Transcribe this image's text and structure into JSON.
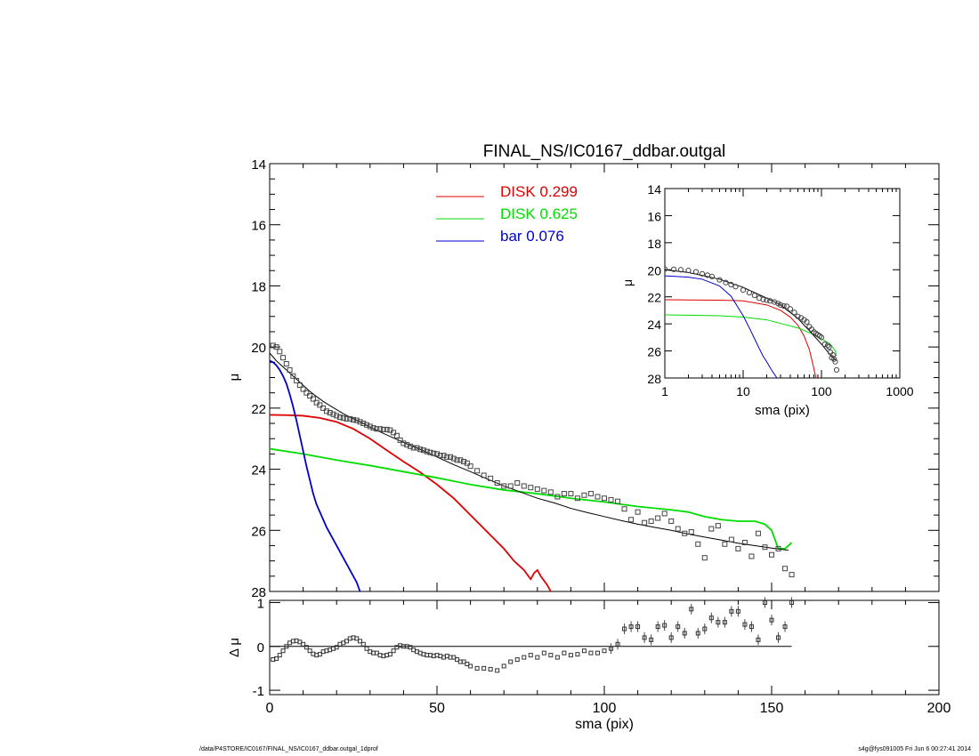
{
  "chart_data": [
    {
      "type": "line",
      "title": "FINAL_NS/IC0167_ddbar.outgal",
      "xlabel": "",
      "ylabel": "μ",
      "xlim": [
        0,
        200
      ],
      "ylim": [
        28,
        14
      ],
      "y_inverted": true,
      "x_ticks": [],
      "y_ticks": [
        "14",
        "16",
        "18",
        "20",
        "22",
        "24",
        "26",
        "28"
      ],
      "legend": [
        {
          "label": "DISK  0.299",
          "color": "#e00000"
        },
        {
          "label": "DISK  0.625",
          "color": "#00dd00"
        },
        {
          "label": "bar  0.076",
          "color": "#0000cc"
        }
      ],
      "legend_placement": "top-center",
      "series": [
        {
          "name": "DISK  0.299",
          "color": "#e00000",
          "x": [
            0,
            5,
            10,
            15,
            20,
            25,
            30,
            35,
            40,
            45,
            50,
            55,
            60,
            65,
            70,
            73,
            76,
            78,
            79,
            80,
            81,
            83,
            84,
            85
          ],
          "y": [
            22.22,
            22.23,
            22.25,
            22.32,
            22.45,
            22.68,
            23.0,
            23.38,
            23.75,
            24.1,
            24.5,
            24.95,
            25.5,
            26.05,
            26.6,
            27.0,
            27.3,
            27.6,
            27.4,
            27.3,
            27.5,
            27.8,
            28.0,
            28.1
          ]
        },
        {
          "name": "DISK  0.625",
          "color": "#00dd00",
          "x": [
            0,
            10,
            20,
            30,
            40,
            50,
            60,
            70,
            80,
            90,
            100,
            110,
            120,
            125,
            130,
            135,
            140,
            145,
            148,
            150,
            152,
            154,
            156
          ],
          "y": [
            23.33,
            23.5,
            23.7,
            23.88,
            24.08,
            24.28,
            24.5,
            24.68,
            24.8,
            24.95,
            25.07,
            25.22,
            25.33,
            25.4,
            25.55,
            25.65,
            25.7,
            25.7,
            25.8,
            26.0,
            26.6,
            26.6,
            26.4
          ]
        },
        {
          "name": "bar  0.076",
          "color": "#0000cc",
          "x": [
            0,
            1,
            2,
            3,
            4,
            5,
            6,
            7,
            8,
            9,
            10,
            11,
            12,
            13,
            14,
            15,
            17,
            20,
            23,
            26,
            27
          ],
          "y": [
            20.45,
            20.5,
            20.6,
            20.75,
            20.95,
            21.2,
            21.55,
            21.95,
            22.4,
            22.9,
            23.4,
            23.9,
            24.35,
            24.8,
            25.15,
            25.4,
            25.9,
            26.5,
            27.1,
            27.7,
            28.0
          ]
        },
        {
          "name": "",
          "color": "#000000",
          "x": [
            0,
            2,
            4,
            6,
            8,
            10,
            12,
            14,
            16,
            18,
            20,
            22,
            25,
            28,
            30,
            35,
            40,
            45,
            50,
            55,
            60,
            65,
            70,
            75,
            80,
            85,
            90,
            95,
            100,
            105,
            110,
            115,
            120,
            125,
            130,
            135,
            140,
            145,
            150,
            155
          ],
          "y": [
            20.2,
            20.45,
            20.65,
            20.85,
            21.05,
            21.25,
            21.45,
            21.62,
            21.78,
            21.92,
            22.05,
            22.18,
            22.35,
            22.5,
            22.62,
            22.88,
            23.12,
            23.35,
            23.6,
            23.85,
            24.08,
            24.32,
            24.55,
            24.75,
            24.95,
            25.1,
            25.28,
            25.42,
            25.55,
            25.68,
            25.8,
            25.9,
            26.0,
            26.12,
            26.22,
            26.32,
            26.42,
            26.5,
            26.58,
            26.65
          ]
        },
        {
          "name": "",
          "color": "#666666",
          "marker": "square",
          "x": [
            1,
            2,
            3,
            4,
            5,
            6,
            7,
            8,
            9,
            10,
            11,
            12,
            13,
            14,
            15,
            16,
            17,
            18,
            19,
            20,
            21,
            22,
            23,
            24,
            25,
            26,
            27,
            28,
            29,
            30,
            31,
            32,
            33,
            34,
            35,
            36,
            37,
            38,
            39,
            40,
            41,
            42,
            43,
            44,
            45,
            46,
            47,
            48,
            49,
            50,
            51,
            52,
            53,
            54,
            55,
            56,
            57,
            58,
            59,
            60,
            62,
            64,
            66,
            68,
            70,
            72,
            74,
            76,
            78,
            80,
            82,
            84,
            86,
            88,
            90,
            92,
            94,
            96,
            98,
            100,
            102,
            104,
            106,
            108,
            110,
            112,
            114,
            116,
            118,
            120,
            122,
            124,
            126,
            128,
            130,
            132,
            134,
            136,
            138,
            140,
            142,
            144,
            146,
            148,
            150,
            152,
            154,
            156
          ],
          "y": [
            19.95,
            20.0,
            20.15,
            20.35,
            20.55,
            20.75,
            20.95,
            21.1,
            21.25,
            21.38,
            21.5,
            21.6,
            21.7,
            21.82,
            21.9,
            22.0,
            22.1,
            22.15,
            22.2,
            22.25,
            22.3,
            22.32,
            22.35,
            22.35,
            22.38,
            22.4,
            22.45,
            22.5,
            22.55,
            22.6,
            22.65,
            22.68,
            22.68,
            22.7,
            22.7,
            22.72,
            22.8,
            22.9,
            23.05,
            23.15,
            23.2,
            23.25,
            23.3,
            23.3,
            23.35,
            23.38,
            23.42,
            23.45,
            23.48,
            23.5,
            23.55,
            23.55,
            23.6,
            23.6,
            23.65,
            23.7,
            23.7,
            23.75,
            23.8,
            23.9,
            24.05,
            24.2,
            24.3,
            24.45,
            24.55,
            24.55,
            24.45,
            24.55,
            24.6,
            24.65,
            24.7,
            24.75,
            24.9,
            24.8,
            24.8,
            24.95,
            24.85,
            24.8,
            24.9,
            24.95,
            25.0,
            25.05,
            25.3,
            25.65,
            25.4,
            25.75,
            25.7,
            25.6,
            25.45,
            25.7,
            25.95,
            26.1,
            26.05,
            26.45,
            26.9,
            25.95,
            25.85,
            26.45,
            26.3,
            26.6,
            26.4,
            26.85,
            26.1,
            26.55,
            26.8,
            26.6,
            27.25,
            27.45
          ]
        }
      ]
    },
    {
      "type": "scatter",
      "title": "",
      "xlabel": "sma (pix)",
      "ylabel": "Δ μ",
      "xlim": [
        0,
        200
      ],
      "ylim": [
        -1.1,
        1.05
      ],
      "x_ticks": [
        "0",
        "50",
        "100",
        "150",
        "200"
      ],
      "y_ticks": [
        "1",
        "0",
        "-1"
      ],
      "zero_line": true,
      "series": [
        {
          "name": "",
          "color": "#000000",
          "marker": "square",
          "x": [
            1,
            2,
            3,
            4,
            5,
            6,
            7,
            8,
            9,
            10,
            11,
            12,
            13,
            14,
            15,
            16,
            17,
            18,
            19,
            20,
            21,
            22,
            23,
            24,
            25,
            26,
            27,
            28,
            29,
            30,
            31,
            32,
            33,
            34,
            35,
            36,
            37,
            38,
            39,
            40,
            41,
            42,
            43,
            44,
            45,
            46,
            47,
            48,
            49,
            50,
            51,
            52,
            53,
            54,
            55,
            56,
            57,
            58,
            59,
            60,
            62,
            64,
            66,
            68,
            70,
            72,
            74,
            76,
            78,
            80,
            82,
            84,
            86,
            88,
            90,
            92,
            94,
            96,
            98,
            100,
            102,
            104,
            106,
            108,
            110,
            112,
            114,
            116,
            118,
            120,
            122,
            124,
            126,
            128,
            130,
            132,
            134,
            136,
            138,
            140,
            142,
            144,
            146,
            148,
            150,
            152,
            154,
            156
          ],
          "y": [
            -0.3,
            -0.28,
            -0.2,
            -0.1,
            0.0,
            0.08,
            0.12,
            0.13,
            0.1,
            0.05,
            -0.02,
            -0.1,
            -0.17,
            -0.2,
            -0.18,
            -0.12,
            -0.1,
            -0.08,
            -0.05,
            -0.02,
            0.05,
            0.08,
            0.12,
            0.18,
            0.2,
            0.18,
            0.12,
            0.05,
            -0.05,
            -0.12,
            -0.15,
            -0.15,
            -0.2,
            -0.22,
            -0.2,
            -0.18,
            -0.1,
            -0.02,
            0.02,
            0.0,
            0.0,
            -0.02,
            -0.08,
            -0.12,
            -0.15,
            -0.18,
            -0.2,
            -0.2,
            -0.22,
            -0.2,
            -0.22,
            -0.25,
            -0.22,
            -0.25,
            -0.25,
            -0.3,
            -0.35,
            -0.35,
            -0.4,
            -0.45,
            -0.5,
            -0.5,
            -0.52,
            -0.55,
            -0.45,
            -0.35,
            -0.3,
            -0.25,
            -0.2,
            -0.25,
            -0.15,
            -0.2,
            -0.25,
            -0.15,
            -0.2,
            -0.18,
            -0.1,
            -0.15,
            -0.15,
            -0.1,
            -0.05,
            0.05,
            0.4,
            0.45,
            0.45,
            0.2,
            0.15,
            0.45,
            0.48,
            0.2,
            0.45,
            0.3,
            0.85,
            0.3,
            0.4,
            0.65,
            0.55,
            0.55,
            0.8,
            0.8,
            0.5,
            0.45,
            0.15,
            1.0,
            0.6,
            0.2,
            0.45,
            1.0
          ]
        }
      ]
    },
    {
      "type": "line",
      "title": "",
      "xlabel": "sma (pix)",
      "ylabel": "μ",
      "x_scale": "log",
      "xlim": [
        1,
        1000
      ],
      "ylim": [
        28,
        14
      ],
      "y_inverted": true,
      "x_ticks": [
        "1",
        "10",
        "100",
        "1000"
      ],
      "y_ticks": [
        "14",
        "16",
        "18",
        "20",
        "22",
        "24",
        "26",
        "28"
      ],
      "series": [
        {
          "name": "",
          "color": "#e00000",
          "x": [
            1,
            2,
            5,
            10,
            20,
            30,
            40,
            50,
            60,
            70,
            80,
            85
          ],
          "y": [
            22.22,
            22.23,
            22.25,
            22.3,
            22.6,
            23.0,
            23.5,
            24.1,
            24.9,
            25.9,
            27.3,
            28.0
          ]
        },
        {
          "name": "",
          "color": "#00dd00",
          "x": [
            1,
            2,
            5,
            10,
            20,
            50,
            80,
            100,
            130,
            150,
            156
          ],
          "y": [
            23.33,
            23.36,
            23.4,
            23.5,
            23.7,
            24.3,
            24.8,
            25.1,
            25.5,
            26.0,
            26.4
          ]
        },
        {
          "name": "",
          "color": "#0000cc",
          "x": [
            1,
            2,
            3,
            5,
            7,
            10,
            12,
            14,
            16,
            18,
            20,
            23,
            27
          ],
          "y": [
            20.45,
            20.55,
            20.7,
            21.2,
            21.95,
            23.4,
            24.3,
            25.1,
            25.8,
            26.4,
            26.8,
            27.4,
            28.0
          ]
        },
        {
          "name": "",
          "color": "#000000",
          "x": [
            1,
            2,
            5,
            10,
            20,
            30,
            50,
            70,
            100,
            130,
            155
          ],
          "y": [
            20.0,
            20.2,
            20.7,
            21.3,
            22.1,
            22.6,
            23.6,
            24.5,
            25.5,
            26.3,
            26.7
          ]
        },
        {
          "name": "",
          "color": "#555555",
          "marker": "circle",
          "x": [
            1,
            1.3,
            1.6,
            2,
            2.5,
            3,
            3.5,
            4,
            5,
            6,
            7,
            8,
            10,
            12,
            14,
            16,
            18,
            20,
            22,
            25,
            28,
            30,
            33,
            36,
            40,
            45,
            50,
            55,
            60,
            65,
            70,
            75,
            80,
            85,
            90,
            95,
            100,
            110,
            120,
            125,
            130,
            135,
            140,
            145,
            150,
            156
          ],
          "y": [
            19.95,
            19.97,
            20.0,
            20.05,
            20.15,
            20.3,
            20.4,
            20.5,
            20.75,
            20.95,
            21.1,
            21.25,
            21.5,
            21.7,
            21.9,
            22.1,
            22.2,
            22.25,
            22.3,
            22.38,
            22.5,
            22.6,
            22.68,
            22.7,
            22.9,
            23.15,
            23.45,
            23.55,
            23.7,
            23.85,
            24.2,
            24.4,
            24.6,
            24.7,
            24.8,
            24.9,
            25.0,
            25.5,
            25.6,
            25.7,
            26.1,
            26.5,
            26.3,
            26.6,
            26.8,
            27.4
          ]
        }
      ]
    }
  ],
  "footer": {
    "left": "/data/P4STORE/IC0167/FINAL_NS/IC0167_ddbar.outgal_1dprof",
    "right": "s4g@fys091005  Fri Jun  6 00:27:41 2014"
  }
}
